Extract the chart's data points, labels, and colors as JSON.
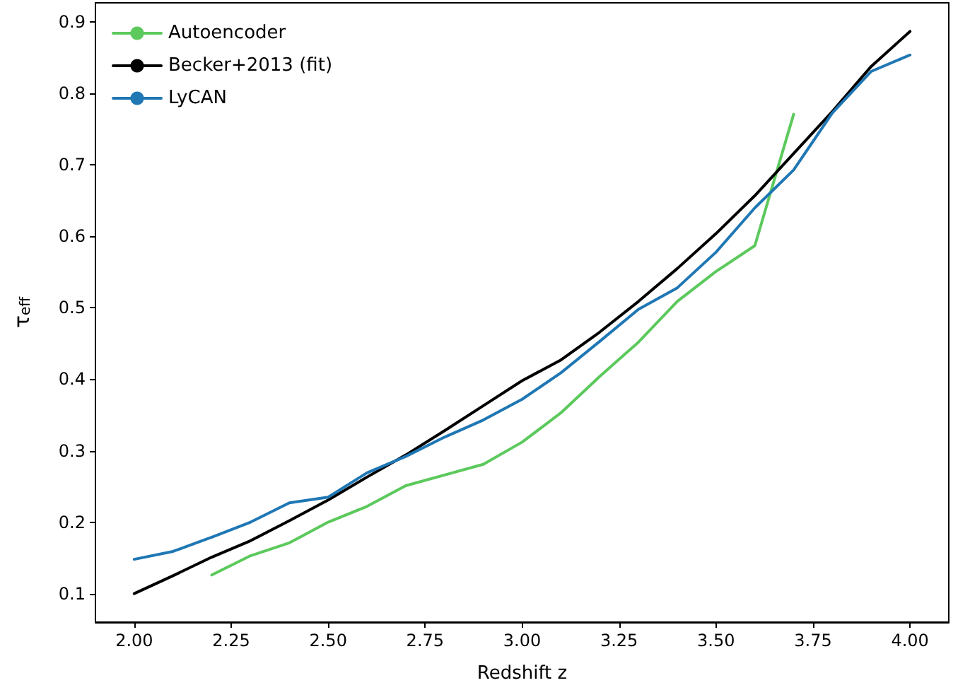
{
  "chart_data": {
    "type": "line",
    "xlabel": "Redshift z",
    "ylabel": "τ$_{eff}$",
    "x": [
      2.0,
      2.1,
      2.2,
      2.3,
      2.4,
      2.5,
      2.6,
      2.7,
      2.8,
      2.9,
      3.0,
      3.1,
      3.2,
      3.3,
      3.4,
      3.5,
      3.6,
      3.7,
      3.8,
      3.9,
      4.0
    ],
    "series": [
      {
        "name": "Autoencoder",
        "color": "#5cc95c",
        "x": [
          2.2,
          2.3,
          2.4,
          2.5,
          2.6,
          2.7,
          2.8,
          2.9,
          3.0,
          3.1,
          3.2,
          3.3,
          3.4,
          3.5,
          3.6,
          3.7
        ],
        "values": [
          0.126,
          0.153,
          0.171,
          0.2,
          0.222,
          0.251,
          0.266,
          0.281,
          0.312,
          0.353,
          0.404,
          0.452,
          0.509,
          0.551,
          0.587,
          0.771
        ]
      },
      {
        "name": "Becker+2013 (fit)",
        "color": "#000000",
        "values": [
          0.1,
          0.125,
          0.151,
          0.174,
          0.202,
          0.231,
          0.263,
          0.294,
          0.328,
          0.363,
          0.398,
          0.427,
          0.466,
          0.509,
          0.555,
          0.604,
          0.657,
          0.716,
          0.775,
          0.838,
          0.887
        ]
      },
      {
        "name": "LyCAN",
        "color": "#1f77b4",
        "values": [
          0.148,
          0.159,
          0.179,
          0.2,
          0.227,
          0.235,
          0.269,
          0.292,
          0.319,
          0.343,
          0.372,
          0.409,
          0.453,
          0.498,
          0.528,
          0.578,
          0.64,
          0.693,
          0.773,
          0.831,
          0.854
        ]
      }
    ],
    "xlim": [
      1.9,
      4.1
    ],
    "ylim": [
      0.06,
      0.927
    ],
    "xticks": [
      {
        "value": 2,
        "label": "2.00"
      },
      {
        "value": 2.25,
        "label": "2.25"
      },
      {
        "value": 2.5,
        "label": "2.50"
      },
      {
        "value": 2.75,
        "label": "2.75"
      },
      {
        "value": 3,
        "label": "3.00"
      },
      {
        "value": 3.25,
        "label": "3.25"
      },
      {
        "value": 3.5,
        "label": "3.50"
      },
      {
        "value": 3.75,
        "label": "3.75"
      },
      {
        "value": 4,
        "label": "4.00"
      }
    ],
    "yticks": [
      0.1,
      0.2,
      0.3,
      0.4,
      0.5,
      0.6,
      0.7,
      0.8,
      0.9
    ],
    "grid": false,
    "legend": "top left",
    "marker": "none",
    "line_style": "solid"
  }
}
